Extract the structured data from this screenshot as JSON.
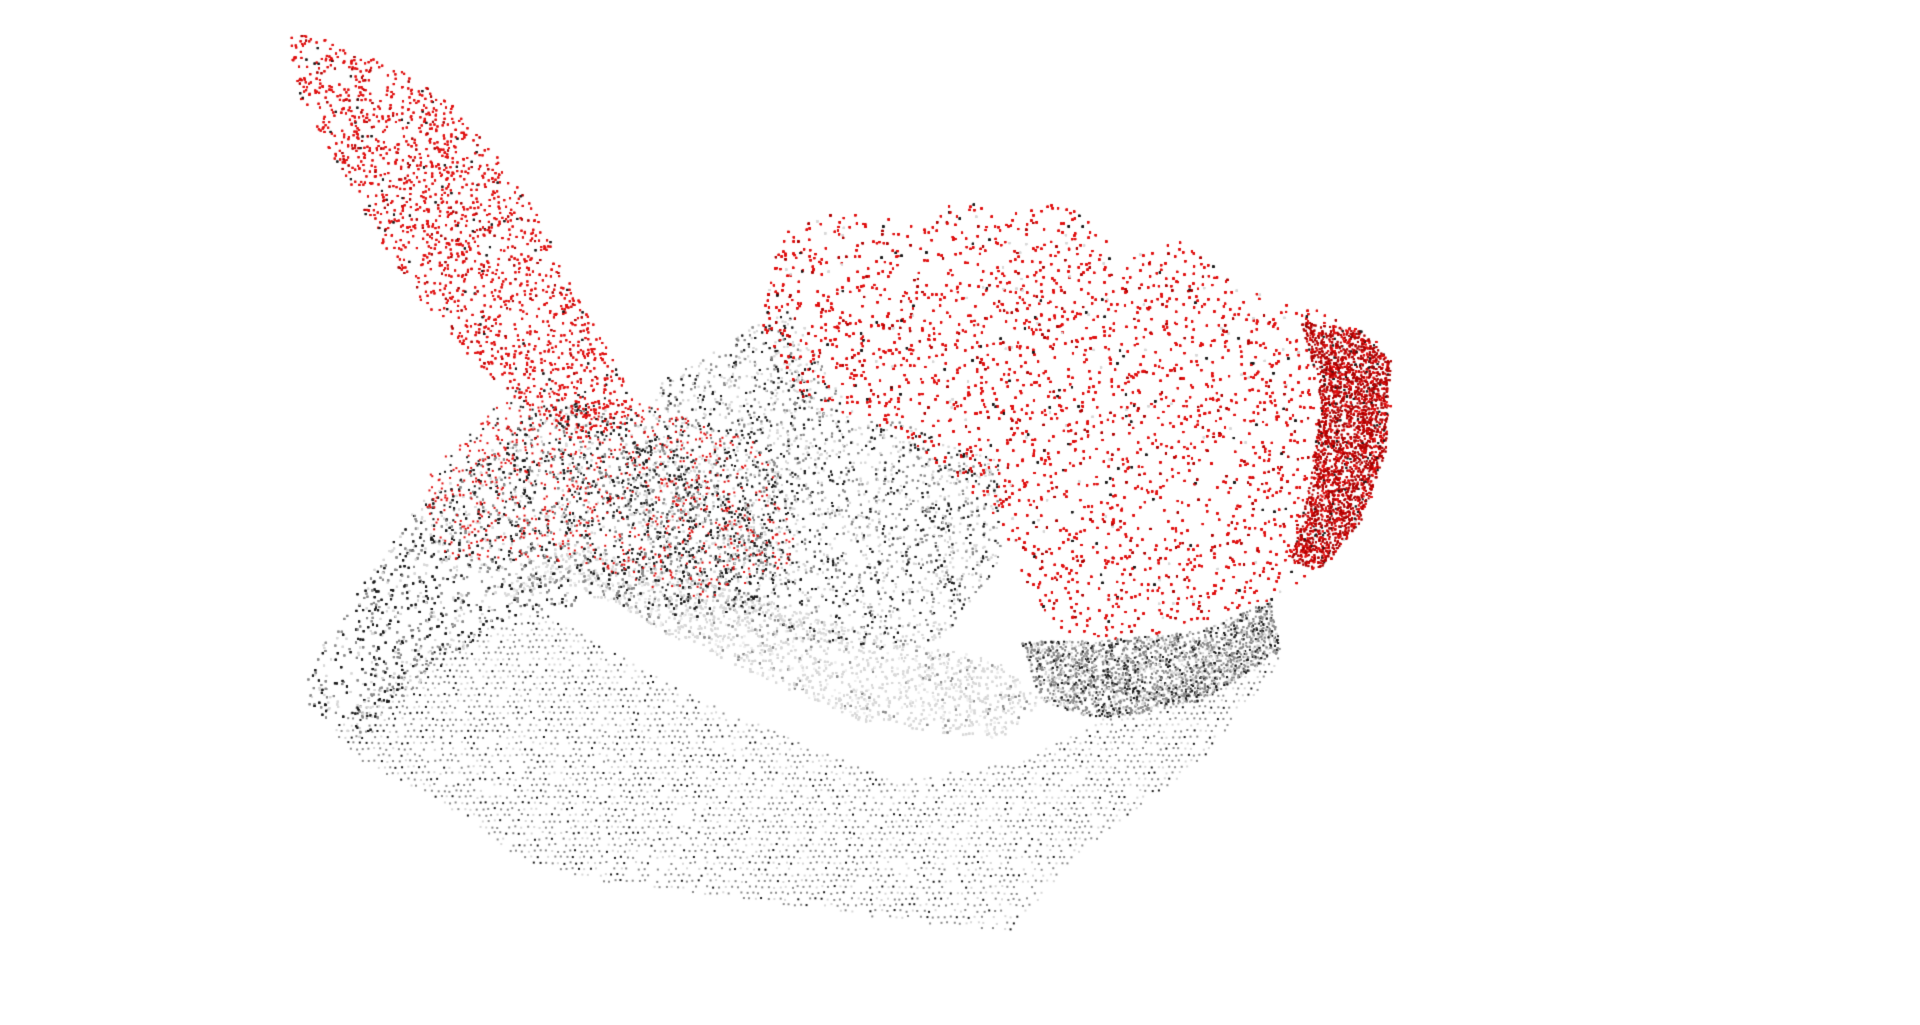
{
  "viewer": {
    "background_color": "#ffffff",
    "point_colors": {
      "dark": "#1a1a1a",
      "mid_gray": "#8a8a8a",
      "light_gray": "#d8d8d8",
      "red": "#e01010",
      "dark_red": "#b00000"
    }
  }
}
